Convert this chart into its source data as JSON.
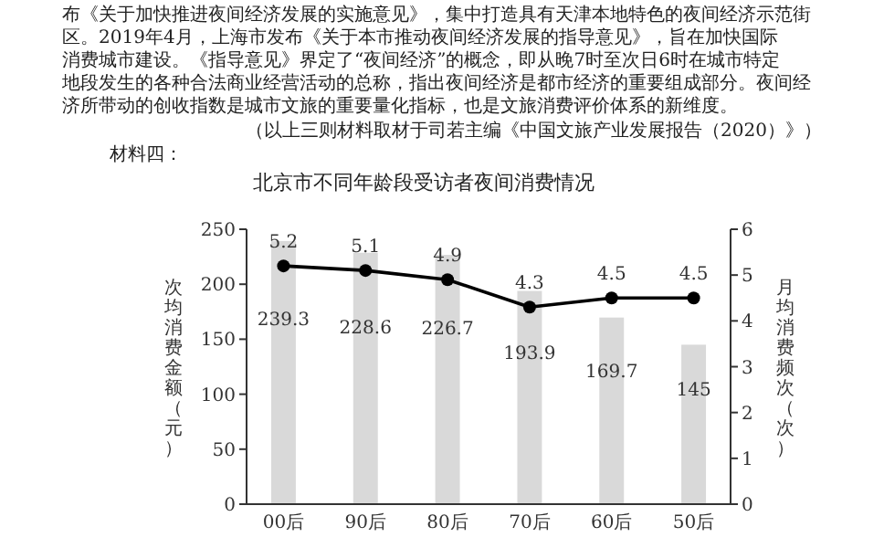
{
  "chart_data": {
    "type": "bar",
    "title": "北京市不同年龄段受访者夜间消费情况",
    "annotations": [
      "布《关于加快推进夜间经济发展的实施意见》，集中打造具有天津本地特色的夜间经济示范街区。2019年4月，上海市发布《关于本市推动夜间经济发展的指导意见》，旨在加快国际消费城市建设。《指导意见》界定了“夜间经济”的概念，即从晚7时至次日6时在城市特定地段发生的各种合法商业经营活动的总称，指出夜间经济是都市经济的重要组成部分。夜间经济所带动的创收指数是城市文旅的重要量化指标，也是文旅消费评价体系的新维度。",
      "（以上三则材料取材于司若主编《中国文旅产业发展报告（2020）》）",
      "材料四："
    ],
    "categories": [
      "00后",
      "90后",
      "80后",
      "70后",
      "60后",
      "50后"
    ],
    "ylabel": "次均消费金额（元）",
    "y2label": "月均消费频次（次）",
    "ylim": [
      0,
      250
    ],
    "yticks": [
      0,
      50,
      100,
      150,
      200,
      250
    ],
    "y2lim": [
      0,
      6
    ],
    "y2ticks": [
      0,
      1,
      2,
      3,
      4,
      5,
      6
    ],
    "series": [
      {
        "color": "#d9d9d9",
        "values": [
          239.3,
          228.6,
          226.7,
          193.9,
          169.7,
          145
        ]
      },
      {
        "type": "line",
        "axis": "y2",
        "color": "#000000",
        "marker": "circle",
        "values": [
          5.2,
          5.1,
          4.9,
          4.3,
          4.5,
          4.5
        ]
      }
    ],
    "data_labels": true
  }
}
